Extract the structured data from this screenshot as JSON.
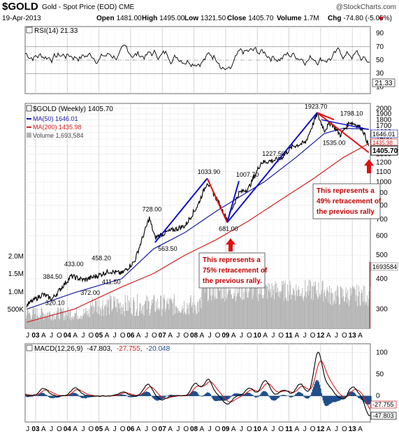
{
  "header": {
    "symbol": "$GOLD",
    "name": "Gold - Spot Price (EOD)",
    "exchange": "CME",
    "watermark": "@StockCharts.com",
    "date": "19-Apr-2013",
    "open_label": "Open",
    "open": "1481.00",
    "high_label": "High",
    "high": "1495.00",
    "low_label": "Low",
    "low": "1321.50",
    "close_label": "Close",
    "close": "1405.70",
    "volume_label": "Volume",
    "volume": "1.7M",
    "chg_label": "Chg",
    "chg": "-74.80 (-5.05%)"
  },
  "colors": {
    "price": "#000000",
    "ma50": "#1a1aa6",
    "ma200": "#d42020",
    "volume": "#b3b3b3",
    "trend": "#1010c8",
    "retrace": "#e01010",
    "macd_line": "#000000",
    "macd_signal": "#d42020",
    "macd_hist": "#1f4e8c",
    "rsi_fill_low": "#1f4e8c"
  },
  "chart_data": [
    {
      "type": "line",
      "panel": "RSI",
      "legend": "RSI(14) 21.33",
      "yticks": [
        "10",
        "30",
        "50",
        "70",
        "90"
      ],
      "ylim": [
        0,
        100
      ],
      "guides": [
        30,
        50,
        70
      ],
      "last_value_label": "21.33"
    },
    {
      "type": "line",
      "panel": "price",
      "scale": "log",
      "ylim": [
        250,
        2100
      ],
      "yticks": [
        "300",
        "400",
        "500",
        "600",
        "700",
        "800",
        "900",
        "1000",
        "1100",
        "1200",
        "1300",
        "1400",
        "1500",
        "1600",
        "1700",
        "1800",
        "1900",
        "2000"
      ],
      "volume_ticks": [
        "500K",
        "1.0M",
        "1.5M",
        "2.0M"
      ],
      "x_ticks": [
        "J",
        "03",
        "A",
        "J",
        "O",
        "04",
        "A",
        "J",
        "O",
        "05",
        "A",
        "J",
        "O",
        "06",
        "A",
        "J",
        "O",
        "07",
        "A",
        "J",
        "O",
        "08",
        "A",
        "J",
        "O",
        "09",
        "A",
        "J",
        "O",
        "10",
        "A",
        "J",
        "O",
        "11",
        "A",
        "J",
        "O",
        "12",
        "A",
        "J",
        "O",
        "13",
        "A"
      ],
      "legend": [
        {
          "label": "$GOLD (Weekly) 1405.70"
        },
        {
          "label": "MA(50) 1646.01"
        },
        {
          "label": "MA(200) 1435.98"
        },
        {
          "label": "Volume 1,693,584"
        }
      ],
      "series": [
        {
          "name": "$GOLD (Weekly)",
          "x": [
            2002.5,
            2003.0,
            2003.3,
            2003.9,
            2004.3,
            2004.7,
            2005.1,
            2005.5,
            2005.9,
            2006.37,
            2006.55,
            2006.9,
            2007.5,
            2007.9,
            2008.2,
            2008.5,
            2008.83,
            2009.2,
            2009.5,
            2009.9,
            2010.5,
            2010.9,
            2011.3,
            2011.67,
            2011.9,
            2012.1,
            2012.4,
            2012.7,
            2012.9,
            2013.1,
            2013.3
          ],
          "y": [
            312,
            345,
            330,
            410,
            395,
            410,
            430,
            420,
            470,
            710,
            590,
            620,
            660,
            800,
            1000,
            850,
            700,
            900,
            940,
            1200,
            1240,
            1400,
            1450,
            1900,
            1630,
            1750,
            1560,
            1760,
            1720,
            1650,
            1405
          ]
        },
        {
          "name": "MA(50)",
          "x": [
            2002.5,
            2004.0,
            2005.5,
            2006.5,
            2007.5,
            2008.5,
            2009.3,
            2010.0,
            2011.0,
            2011.9,
            2012.5,
            2013.3
          ],
          "y": [
            300,
            350,
            400,
            530,
            620,
            760,
            880,
            1000,
            1260,
            1580,
            1660,
            1646
          ]
        },
        {
          "name": "MA(200)",
          "x": [
            2002.5,
            2004.0,
            2005.5,
            2006.5,
            2007.5,
            2008.5,
            2009.5,
            2010.5,
            2011.5,
            2012.5,
            2013.3
          ],
          "y": [
            265,
            300,
            370,
            420,
            500,
            580,
            690,
            840,
            1020,
            1260,
            1436
          ]
        }
      ],
      "annotations": [
        {
          "text": "320.10",
          "x": 2003.0,
          "y": 320
        },
        {
          "text": "384.50",
          "x": 2003.1,
          "y": 384.5
        },
        {
          "text": "372.00",
          "x": 2004.2,
          "y": 372
        },
        {
          "text": "433.00",
          "x": 2003.95,
          "y": 433
        },
        {
          "text": "411.50",
          "x": 2005.05,
          "y": 411.5
        },
        {
          "text": "458.20",
          "x": 2004.95,
          "y": 458.2
        },
        {
          "text": "563.50",
          "x": 2006.6,
          "y": 563.5
        },
        {
          "text": "728.00",
          "x": 2006.37,
          "y": 728
        },
        {
          "text": "1033.90",
          "x": 2008.2,
          "y": 1033.9
        },
        {
          "text": "681.00",
          "x": 2008.83,
          "y": 681
        },
        {
          "text": "1007.70",
          "x": 2009.2,
          "y": 1007.7
        },
        {
          "text": "1227.50",
          "x": 2010.2,
          "y": 1227.5
        },
        {
          "text": "1535.00",
          "x": 2011.8,
          "y": 1535
        },
        {
          "text": "1923.70",
          "x": 2011.67,
          "y": 1923.7
        },
        {
          "text": "1798.10",
          "x": 2012.75,
          "y": 1798.1
        }
      ],
      "callouts": [
        {
          "text": [
            "This represents a",
            "75% retracement of",
            "the previous rally."
          ]
        },
        {
          "text": [
            "This represents a",
            "49% retracement of",
            "the previous rally"
          ]
        }
      ],
      "right_labels": [
        {
          "text": "1646.01"
        },
        {
          "text": "1435.98"
        },
        {
          "text": "1405.70"
        },
        {
          "text": "1693584"
        }
      ]
    },
    {
      "type": "line",
      "panel": "MACD",
      "legend": {
        "label": "MACD(12,26,9)",
        "macd": "-47.803",
        "signal": "-27.755",
        "hist": "-20.048"
      },
      "ylim": [
        -60,
        120
      ],
      "yticks": [
        "0",
        "50",
        "100"
      ],
      "right_labels": [
        {
          "text": "-27.755"
        },
        {
          "text": "-47.803"
        }
      ],
      "x_ticks": [
        "J",
        "03",
        "A",
        "J",
        "O",
        "04",
        "A",
        "J",
        "O",
        "05",
        "A",
        "J",
        "O",
        "06",
        "A",
        "J",
        "O",
        "07",
        "A",
        "J",
        "O",
        "08",
        "A",
        "J",
        "O",
        "09",
        "A",
        "J",
        "O",
        "10",
        "A",
        "J",
        "O",
        "11",
        "A",
        "J",
        "O",
        "12",
        "A",
        "J",
        "O",
        "13",
        "A"
      ]
    }
  ]
}
